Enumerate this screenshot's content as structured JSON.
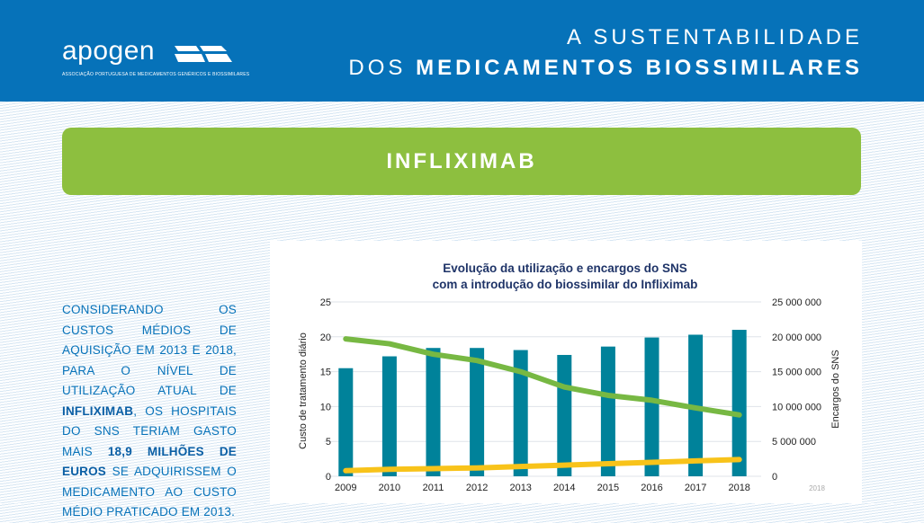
{
  "header": {
    "logo_word": "apogen",
    "logo_subtitle": "ASSOCIAÇÃO PORTUGUESA DE MEDICAMENTOS GENÉRICOS E BIOSSIMILARES",
    "title_line1": "A SUSTENTABILIDADE",
    "title_line2_prefix": "DOS",
    "title_line2_bold": "MEDICAMENTOS BIOSSIMILARES"
  },
  "banner": {
    "label": "INFLIXIMAB"
  },
  "paragraph": {
    "part1": "Considerando os custos médios de aquisição em 2013 e 2018, para o nível de utilização atual de ",
    "bold1": "Infliximab",
    "part2": ", os hospitais do SNS teriam gasto mais ",
    "bold2": "18,9 milhões de euros",
    "part3": " se adquirissem o medicamento ao custo médio praticado em 2013."
  },
  "chart_data": {
    "type": "bar+line",
    "title_line1": "Evolução da utilização e encargos do SNS",
    "title_line2": "com a introdução do biossimilar do Infliximab",
    "categories": [
      "2009",
      "2010",
      "2011",
      "2012",
      "2013",
      "2014",
      "2015",
      "2016",
      "2017",
      "2018"
    ],
    "ylabel_left": "Custo de tratamento diário",
    "ylabel_right": "Encargos do SNS",
    "ylim_left": [
      0,
      25
    ],
    "ylim_right": [
      0,
      25000000
    ],
    "yticks_left": [
      "0",
      "5",
      "10",
      "15",
      "20",
      "25"
    ],
    "yticks_right": [
      "0",
      "5 000 000",
      "10 000 000",
      "15 000 000",
      "20 000 000",
      "25 000 000"
    ],
    "grid": true,
    "series": [
      {
        "type": "bar",
        "axis": "right",
        "color": "#00829a",
        "values": [
          15500000,
          17200000,
          18400000,
          18400000,
          18100000,
          17400000,
          18600000,
          19900000,
          20300000,
          21000000
        ]
      },
      {
        "type": "line",
        "axis": "left",
        "color": "#77b843",
        "values": [
          19.7,
          19.0,
          17.5,
          16.6,
          15.0,
          12.8,
          11.6,
          10.9,
          9.8,
          8.8
        ]
      },
      {
        "type": "line",
        "axis": "left",
        "color": "#f8c31a",
        "values": [
          0.8,
          1.0,
          1.1,
          1.2,
          1.4,
          1.6,
          1.8,
          2.0,
          2.2,
          2.4
        ]
      }
    ],
    "corner_note": "2018"
  },
  "colors": {
    "header": "#0672b9",
    "banner": "#8dbf3f",
    "text_blue": "#0672b9",
    "chart_title": "#1f3468"
  }
}
